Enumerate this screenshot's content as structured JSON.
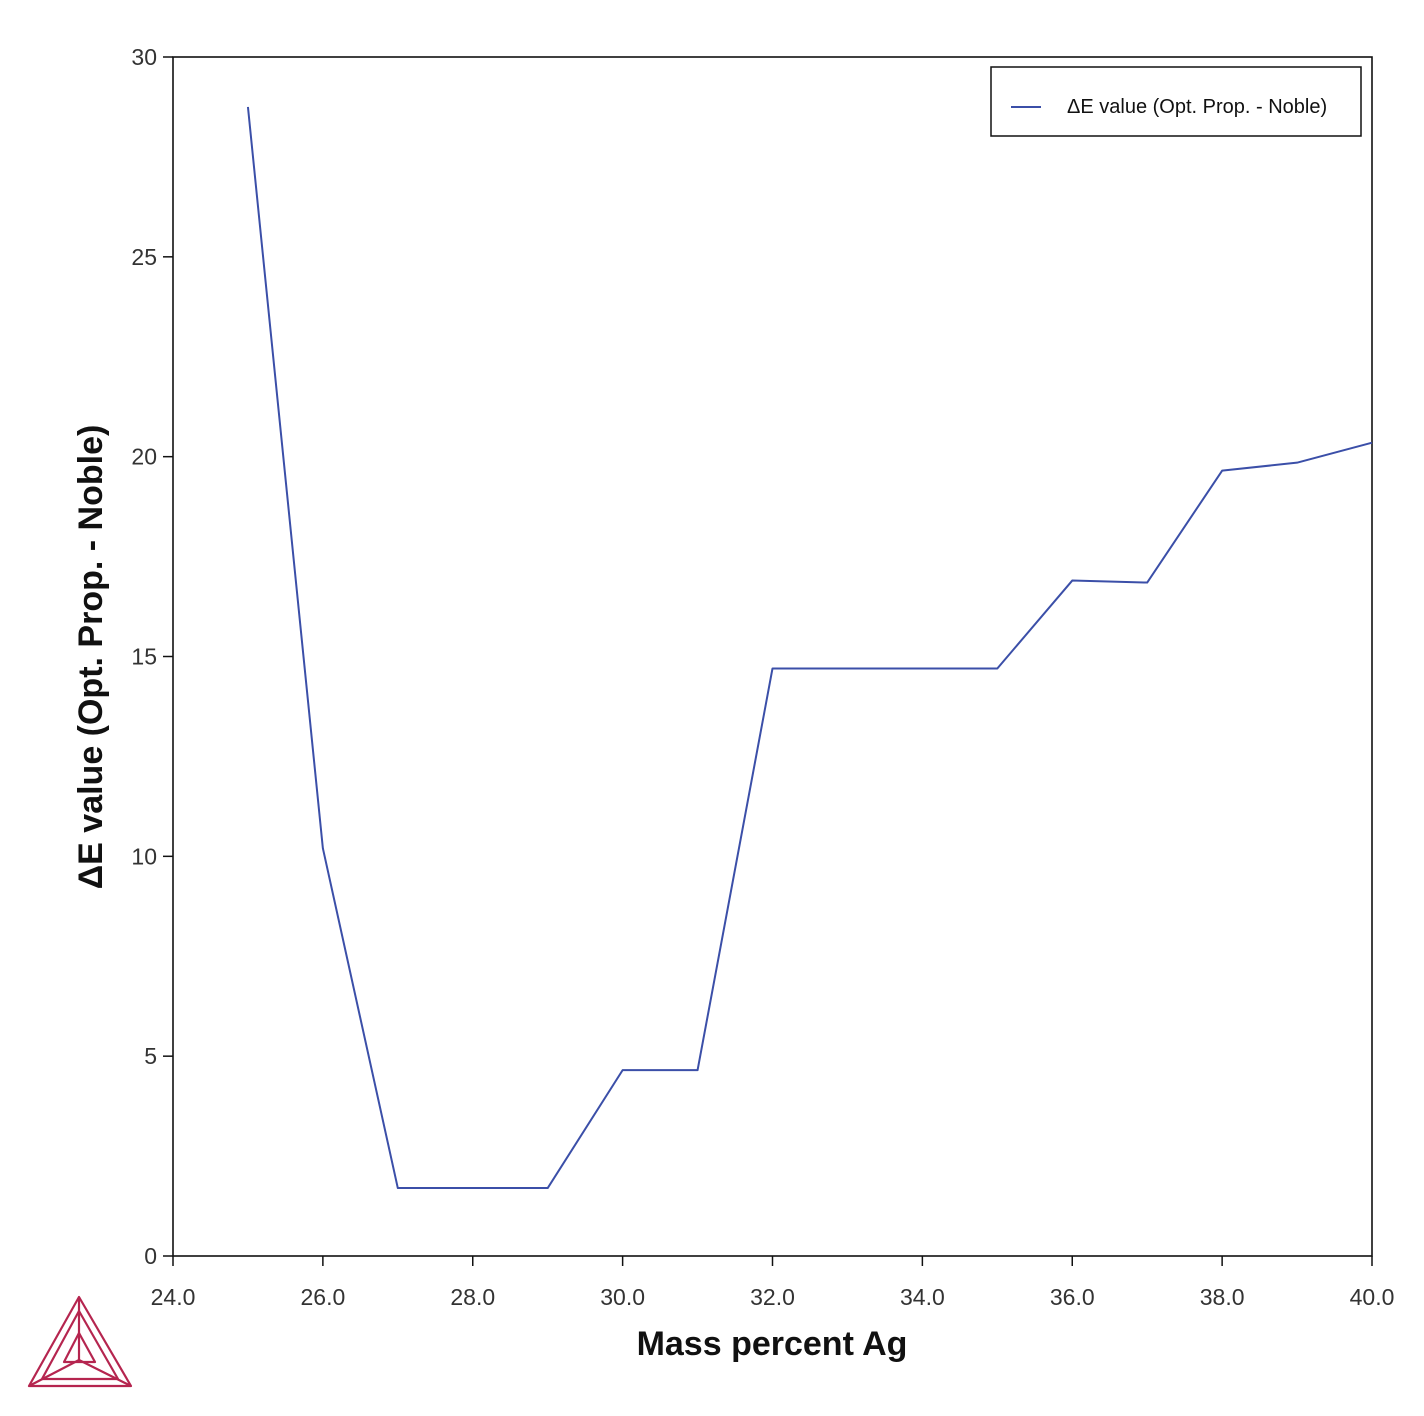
{
  "chart_data": {
    "type": "line",
    "title": "",
    "xlabel": "Mass percent Ag",
    "ylabel": "ΔE value (Opt. Prop. - Noble)",
    "xlim": [
      24.0,
      40.0
    ],
    "ylim": [
      0,
      30
    ],
    "x_ticks": [
      "24.0",
      "26.0",
      "28.0",
      "30.0",
      "32.0",
      "34.0",
      "36.0",
      "38.0",
      "40.0"
    ],
    "y_ticks": [
      "0",
      "5",
      "10",
      "15",
      "20",
      "25",
      "30"
    ],
    "grid": false,
    "legend_position": "top-right",
    "series": [
      {
        "name": "ΔE value (Opt. Prop. - Noble)",
        "color": "#3b4fa8",
        "x": [
          25,
          26,
          27,
          28,
          29,
          30,
          31,
          32,
          33,
          34,
          35,
          36,
          37,
          38,
          39,
          40
        ],
        "y": [
          28.75,
          10.2,
          1.7,
          1.7,
          1.7,
          4.65,
          4.65,
          14.7,
          14.7,
          14.7,
          14.7,
          16.9,
          16.85,
          19.65,
          19.85,
          20.35
        ]
      }
    ]
  },
  "logo": {
    "name": "thermo-calc-logo",
    "color": "#b5254f"
  }
}
